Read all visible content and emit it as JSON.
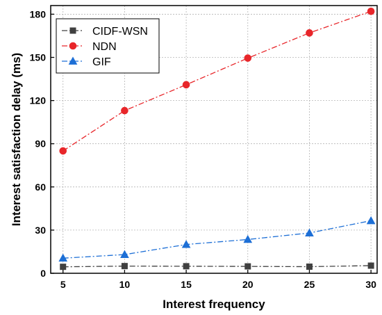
{
  "chart_data": {
    "type": "line",
    "title": "",
    "xlabel": "Interest frequency",
    "ylabel": "Interest satisfaction delay (ms)",
    "x": [
      5,
      10,
      15,
      20,
      25,
      30
    ],
    "xlim": [
      4,
      30.5
    ],
    "ylim": [
      0,
      186
    ],
    "xticks": [
      5,
      10,
      15,
      20,
      25,
      30
    ],
    "yticks": [
      0,
      30,
      60,
      90,
      120,
      150,
      180
    ],
    "grid": true,
    "legend_position": "top-left",
    "series": [
      {
        "name": "CIDF-WSN",
        "color": "#404040",
        "marker": "square",
        "dash": "dash-dot",
        "values": [
          4.5,
          5.0,
          4.9,
          4.8,
          4.6,
          5.3
        ]
      },
      {
        "name": "NDN",
        "color": "#e8262a",
        "marker": "circle",
        "dash": "dash-dot",
        "values": [
          85,
          113,
          131,
          149.5,
          167,
          182
        ]
      },
      {
        "name": "GIF",
        "color": "#1d6fd6",
        "marker": "triangle",
        "dash": "dash-dot",
        "values": [
          10.5,
          13,
          20,
          23.5,
          28,
          36.5
        ]
      }
    ]
  }
}
